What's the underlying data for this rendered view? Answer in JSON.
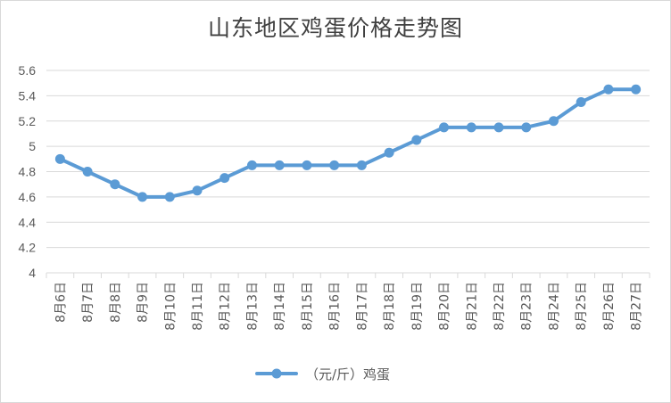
{
  "chart_data": {
    "type": "line",
    "title": "山东地区鸡蛋价格走势图",
    "categories": [
      "8月6日",
      "8月7日",
      "8月8日",
      "8月9日",
      "8月10日",
      "8月11日",
      "8月12日",
      "8月13日",
      "8月14日",
      "8月15日",
      "8月16日",
      "8月17日",
      "8月18日",
      "8月19日",
      "8月20日",
      "8月21日",
      "8月22日",
      "8月23日",
      "8月24日",
      "8月25日",
      "8月26日",
      "8月27日"
    ],
    "series": [
      {
        "name": "（元/斤）鸡蛋",
        "values": [
          4.9,
          4.8,
          4.7,
          4.6,
          4.6,
          4.65,
          4.75,
          4.85,
          4.85,
          4.85,
          4.85,
          4.85,
          4.95,
          5.05,
          5.15,
          5.15,
          5.15,
          5.15,
          5.2,
          5.35,
          5.45,
          5.45
        ],
        "color": "#5b9bd5"
      }
    ],
    "ylim": [
      4,
      5.6
    ],
    "yticks": [
      "4",
      "4.2",
      "4.4",
      "4.6",
      "4.8",
      "5",
      "5.2",
      "5.4",
      "5.6"
    ],
    "xlabel": "",
    "ylabel": "",
    "grid": true,
    "legend": "bottom-center"
  }
}
